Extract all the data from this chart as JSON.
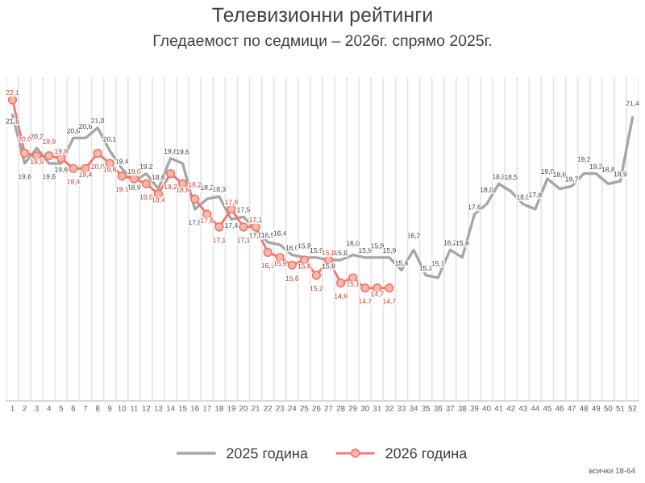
{
  "chart_data": {
    "type": "line",
    "title": "Телевизионни рейтинги",
    "subtitle": "Гледаемост по седмици – 2026г. спрямо 2025г.",
    "categories": [
      "1",
      "2",
      "3",
      "4",
      "5",
      "6",
      "7",
      "8",
      "9",
      "10",
      "11",
      "12",
      "13",
      "14",
      "15",
      "16",
      "17",
      "18",
      "19",
      "20",
      "21",
      "22",
      "23",
      "24",
      "25",
      "26",
      "27",
      "28",
      "29",
      "30",
      "31",
      "32",
      "33",
      "34",
      "35",
      "36",
      "37",
      "38",
      "39",
      "40",
      "41",
      "42",
      "43",
      "44",
      "45",
      "46",
      "47",
      "48",
      "49",
      "50",
      "51",
      "52"
    ],
    "series": [
      {
        "name": "2025 година",
        "color": "#a6a6a6",
        "marker": "none",
        "values": [
          21.5,
          19.6,
          20.2,
          19.6,
          19.6,
          20.6,
          20.6,
          21.0,
          20.1,
          19.4,
          18.9,
          19.2,
          18.6,
          19.8,
          19.6,
          17.8,
          18.2,
          18.3,
          17.4,
          17.5,
          17.0,
          16.5,
          16.4,
          16.0,
          15.9,
          15.9,
          15.8,
          15.8,
          16.0,
          15.9,
          15.9,
          15.9,
          15.4,
          16.2,
          15.2,
          15.1,
          16.2,
          15.9,
          17.6,
          18.0,
          18.8,
          18.5,
          18.0,
          17.8,
          19.0,
          18.6,
          18.7,
          19.2,
          19.2,
          18.8,
          18.9,
          21.4
        ],
        "value_labels": [
          "21,5",
          "19,6",
          "20,2",
          "19,6",
          "19,6",
          "20,6",
          "20,6",
          "21,0",
          "20,1",
          "19,4",
          "18,9",
          "19,2",
          "18,6",
          "19,8",
          "19,6",
          "17,8",
          "18,2",
          "18,3",
          "17,4",
          "17,5",
          "17,0",
          "16,5",
          "16,4",
          "16,0",
          "15,9",
          "15,9",
          "15,8",
          "15,8",
          "16,0",
          "15,9",
          "15,9",
          "15,9",
          "15,4",
          "16,2",
          "15,2",
          "15,1",
          "16,2",
          "15,9",
          "17,6",
          "18,0",
          "18,8",
          "18,5",
          "18,0",
          "17,8",
          "19,0",
          "18,6",
          "18,7",
          "19,2",
          "19,2",
          "18,8",
          "18,9",
          "21,4"
        ]
      },
      {
        "name": "2026 година",
        "color": "#f4736f",
        "marker": "circle",
        "values": [
          22.1,
          20.0,
          19.9,
          19.9,
          19.8,
          19.4,
          19.4,
          20.0,
          19.6,
          19.1,
          19.0,
          18.8,
          18.4,
          19.2,
          18.8,
          18.2,
          17.6,
          17.1,
          17.8,
          17.1,
          17.1,
          16.1,
          15.9,
          15.6,
          15.8,
          15.2,
          15.8,
          14.9,
          15.1,
          14.7,
          14.7,
          14.7,
          null,
          null,
          null,
          null,
          null,
          null,
          null,
          null,
          null,
          null,
          null,
          null,
          null,
          null,
          null,
          null,
          null,
          null,
          null,
          null
        ],
        "value_labels": [
          "22,1",
          "20,0",
          "19,9",
          "19,9",
          "19,8",
          "19,4",
          "19,4",
          "20,0",
          "19,6",
          "19,1",
          "19,0",
          "18,8",
          "18,4",
          "19,2",
          "18,8",
          "18,2",
          "17,6",
          "17,1",
          "17,8",
          "17,1",
          "17,1",
          "16,1",
          "15,9",
          "15,6",
          "15,8",
          "15,2",
          "15,8",
          "14,9",
          "15,1",
          "14,7",
          "14,7",
          "14,7",
          null,
          null,
          null,
          null,
          null,
          null,
          null,
          null,
          null,
          null,
          null,
          null,
          null,
          null,
          null,
          null,
          null,
          null,
          null,
          null
        ]
      }
    ],
    "grid": "x",
    "legend": "bottom",
    "tick_labels": "x",
    "line_style": "solid",
    "annotations": [
      "всички 18-64"
    ]
  }
}
